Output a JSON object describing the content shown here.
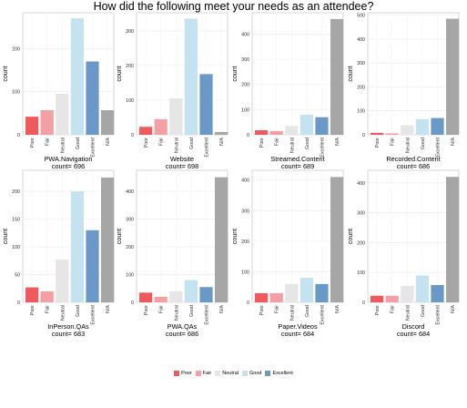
{
  "title": "How did the following meet your needs as an attendee?",
  "colors": {
    "Poor": "#f05a5e",
    "Fair": "#f2a0a3",
    "Neutral": "#e6e6e6",
    "Good": "#c5e2f0",
    "Excellent": "#6a99c8",
    "N/A": "#a6a6a6"
  },
  "legend": [
    "Poor",
    "Fair",
    "Neutral",
    "Good",
    "Excellent"
  ],
  "chart_data": [
    {
      "type": "bar",
      "title": "PWA.Navigation",
      "subtitle": "count= 696",
      "ylabel": "count",
      "categories": [
        "Poor",
        "Fair",
        "Neutral",
        "Good",
        "Excellent",
        "N/A"
      ],
      "values": [
        42,
        57,
        95,
        270,
        170,
        57
      ],
      "yticks": [
        0,
        100,
        200
      ],
      "ylim": [
        0,
        283
      ]
    },
    {
      "type": "bar",
      "title": "Website",
      "subtitle": "count= 698",
      "ylabel": "count",
      "categories": [
        "Poor",
        "Fair",
        "Neutral",
        "Good",
        "Excellent",
        "N/A"
      ],
      "values": [
        23,
        45,
        105,
        335,
        175,
        8
      ],
      "yticks": [
        0,
        100,
        200,
        300
      ],
      "ylim": [
        0,
        352
      ]
    },
    {
      "type": "bar",
      "title": "Streamed.Content",
      "subtitle": "count= 689",
      "ylabel": "count",
      "categories": [
        "Poor",
        "Fair",
        "Neutral",
        "Good",
        "Excellent",
        "N/A"
      ],
      "values": [
        18,
        15,
        35,
        80,
        70,
        460
      ],
      "yticks": [
        0,
        100,
        200,
        300,
        400
      ],
      "ylim": [
        0,
        485
      ]
    },
    {
      "type": "bar",
      "title": "Recorded.Content",
      "subtitle": "count= 686",
      "ylabel": "count",
      "categories": [
        "Poor",
        "Fair",
        "Neutral",
        "Good",
        "Excellent",
        "N/A"
      ],
      "values": [
        8,
        6,
        40,
        65,
        70,
        485
      ],
      "yticks": [
        0,
        100,
        200,
        300,
        400,
        500
      ],
      "ylim": [
        0,
        510
      ]
    },
    {
      "type": "bar",
      "title": "InPerson.QAs",
      "subtitle": "count= 683",
      "ylabel": "count",
      "categories": [
        "Poor",
        "Fair",
        "Neutral",
        "Good",
        "Excellent",
        "N/A"
      ],
      "values": [
        27,
        20,
        77,
        200,
        130,
        225
      ],
      "yticks": [
        0,
        50,
        100,
        150,
        200
      ],
      "ylim": [
        0,
        238
      ]
    },
    {
      "type": "bar",
      "title": "PWA.QAs",
      "subtitle": "count= 686",
      "ylabel": "count",
      "categories": [
        "Poor",
        "Fair",
        "Neutral",
        "Good",
        "Excellent",
        "N/A"
      ],
      "values": [
        35,
        20,
        40,
        80,
        55,
        450
      ],
      "yticks": [
        0,
        100,
        200,
        300,
        400
      ],
      "ylim": [
        0,
        475
      ]
    },
    {
      "type": "bar",
      "title": "Paper.Videos",
      "subtitle": "count= 684",
      "ylabel": "count",
      "categories": [
        "Poor",
        "Fair",
        "Neutral",
        "Good",
        "Excellent",
        "N/A"
      ],
      "values": [
        30,
        30,
        60,
        80,
        60,
        410
      ],
      "yticks": [
        0,
        100,
        200,
        300,
        400
      ],
      "ylim": [
        0,
        432
      ]
    },
    {
      "type": "bar",
      "title": "Discord",
      "subtitle": "count= 684",
      "ylabel": "count",
      "categories": [
        "Poor",
        "Fair",
        "Neutral",
        "Good",
        "Excellent",
        "N/A"
      ],
      "values": [
        22,
        22,
        55,
        90,
        58,
        420
      ],
      "yticks": [
        0,
        100,
        200,
        300,
        400
      ],
      "ylim": [
        0,
        442
      ]
    }
  ]
}
